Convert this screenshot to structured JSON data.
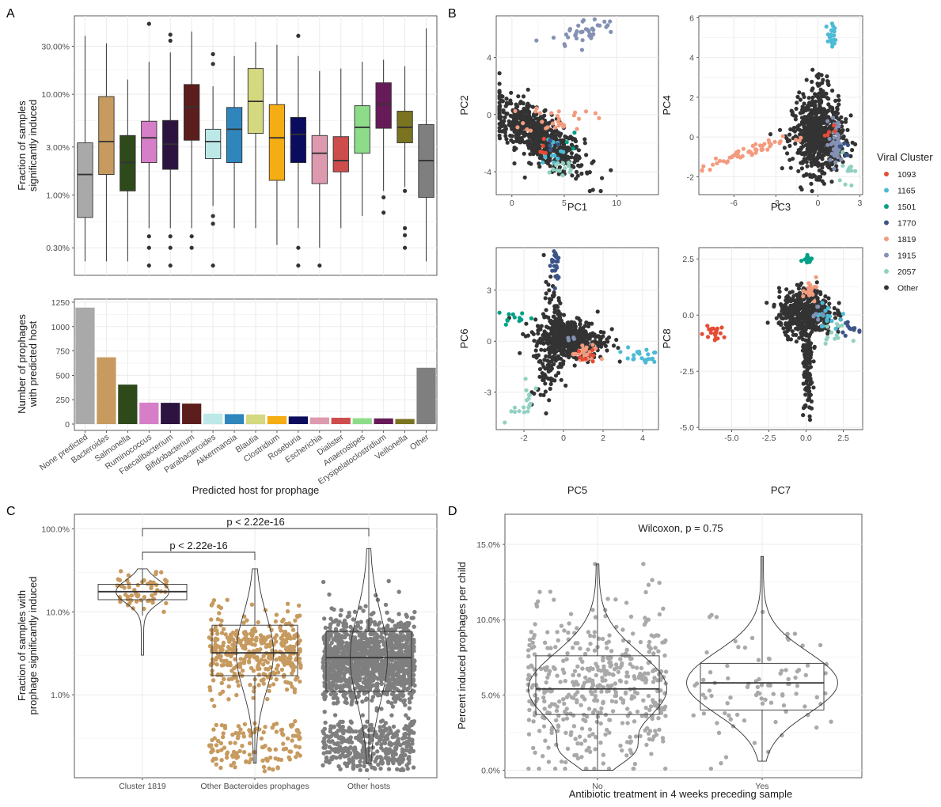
{
  "colors": {
    "panel_bg": "#ffffff",
    "grid": "#ebebeb",
    "axis_text": "#4d4d4d",
    "dark": "#333333",
    "gray_points": "#7f7f7f",
    "light_gray_points": "#a9a9a9",
    "bacteroides": "#c79a5f"
  },
  "panels": {
    "a": "A",
    "b": "B",
    "c": "C",
    "d": "D"
  },
  "chart_data": [
    {
      "id": "A-top",
      "type": "boxplot",
      "ylabel": [
        "Fraction of samples",
        "significantly induced"
      ],
      "yscale": "log",
      "ylim": [
        0.0016,
        0.6
      ],
      "yticks": [
        0.003,
        0.01,
        0.03,
        0.1,
        0.3
      ],
      "yticklabels": [
        "0.30%",
        "1.00%",
        "3.00%",
        "10.00%",
        "30.00%"
      ],
      "boxes": [
        {
          "name": "None predicted",
          "color": "#a9a9a9",
          "q1": 0.006,
          "median": 0.016,
          "q3": 0.033,
          "lo": 0.0022,
          "hi": 0.38,
          "outliers": []
        },
        {
          "name": "Bacteroides",
          "color": "#c79a5f",
          "q1": 0.016,
          "median": 0.034,
          "q3": 0.095,
          "lo": 0.0022,
          "hi": 0.32,
          "outliers": []
        },
        {
          "name": "Salmonella",
          "color": "#2f4a1a",
          "q1": 0.011,
          "median": 0.021,
          "q3": 0.039,
          "lo": 0.0022,
          "hi": 0.14,
          "outliers": []
        },
        {
          "name": "Ruminococcus",
          "color": "#d67ec8",
          "q1": 0.021,
          "median": 0.037,
          "q3": 0.054,
          "lo": 0.0047,
          "hi": 0.21,
          "outliers": [
            0.003,
            0.002,
            0.0039,
            0.5
          ]
        },
        {
          "name": "Faecalibacterium",
          "color": "#2d1440",
          "q1": 0.018,
          "median": 0.032,
          "q3": 0.055,
          "lo": 0.0047,
          "hi": 0.26,
          "outliers": [
            0.003,
            0.0039,
            0.002,
            0.34,
            0.39
          ]
        },
        {
          "name": "Bifidobacterium",
          "color": "#5c1e1c",
          "q1": 0.035,
          "median": 0.075,
          "q3": 0.125,
          "lo": 0.0047,
          "hi": 0.42,
          "outliers": [
            0.003,
            0.0039
          ]
        },
        {
          "name": "Parabacteroides",
          "color": "#bde8e8",
          "q1": 0.023,
          "median": 0.034,
          "q3": 0.045,
          "lo": 0.0078,
          "hi": 0.12,
          "outliers": [
            0.0052,
            0.0062,
            0.002,
            0.2,
            0.25
          ]
        },
        {
          "name": "Akkermansia",
          "color": "#2f86bd",
          "q1": 0.021,
          "median": 0.045,
          "q3": 0.074,
          "lo": 0.0047,
          "hi": 0.24,
          "outliers": []
        },
        {
          "name": "Blautia",
          "color": "#d4d87f",
          "q1": 0.041,
          "median": 0.085,
          "q3": 0.18,
          "lo": 0.0047,
          "hi": 0.33,
          "outliers": []
        },
        {
          "name": "Clostridium",
          "color": "#f4ad13",
          "q1": 0.014,
          "median": 0.037,
          "q3": 0.079,
          "lo": 0.0032,
          "hi": 0.31,
          "outliers": []
        },
        {
          "name": "Roseburia",
          "color": "#0c0c5e",
          "q1": 0.021,
          "median": 0.04,
          "q3": 0.059,
          "lo": 0.0047,
          "hi": 0.24,
          "outliers": [
            0.002,
            0.003,
            0.38
          ]
        },
        {
          "name": "Escherichia",
          "color": "#dd9aae",
          "q1": 0.013,
          "median": 0.026,
          "q3": 0.039,
          "lo": 0.003,
          "hi": 0.17,
          "outliers": [
            0.002
          ]
        },
        {
          "name": "Dialister",
          "color": "#cd4d4c",
          "q1": 0.017,
          "median": 0.022,
          "q3": 0.038,
          "lo": 0.0047,
          "hi": 0.18,
          "outliers": []
        },
        {
          "name": "Anaerostipes",
          "color": "#8ddc8a",
          "q1": 0.026,
          "median": 0.047,
          "q3": 0.077,
          "lo": 0.0062,
          "hi": 0.21,
          "outliers": []
        },
        {
          "name": "Erysipelatoclostridium",
          "color": "#671a58",
          "q1": 0.046,
          "median": 0.08,
          "q3": 0.13,
          "lo": 0.011,
          "hi": 0.22,
          "outliers": [
            0.0095,
            0.0067
          ]
        },
        {
          "name": "Veillonella",
          "color": "#7a731f",
          "q1": 0.033,
          "median": 0.047,
          "q3": 0.068,
          "lo": 0.012,
          "hi": 0.19,
          "outliers": [
            0.011,
            0.0047,
            0.004,
            0.003
          ]
        },
        {
          "name": "Other",
          "color": "#7f7f7f",
          "q1": 0.0095,
          "median": 0.022,
          "q3": 0.05,
          "lo": 0.0022,
          "hi": 0.45,
          "outliers": []
        }
      ]
    },
    {
      "id": "A-bottom",
      "type": "bar",
      "ylabel": [
        "Number of prophages",
        "with predicted host"
      ],
      "xlabel": "Predicted host for prophage",
      "ylim": [
        0,
        1250
      ],
      "yticks": [
        0,
        250,
        500,
        750,
        1000,
        1250
      ],
      "categories": [
        "None predicted",
        "Bacteroides",
        "Salmonella",
        "Ruminococcus",
        "Faecalibacterium",
        "Bifidobacterium",
        "Parabacteroides",
        "Akkermansia",
        "Blautia",
        "Clostridium",
        "Roseburia",
        "Escherichia",
        "Dialister",
        "Anaerostipes",
        "Erysipelatoclostridium",
        "Veillonella",
        "Other"
      ],
      "values": [
        1195,
        685,
        405,
        220,
        218,
        210,
        108,
        102,
        98,
        82,
        78,
        68,
        65,
        60,
        58,
        52,
        578
      ],
      "colors": [
        "#a9a9a9",
        "#c79a5f",
        "#2f4a1a",
        "#d67ec8",
        "#2d1440",
        "#5c1e1c",
        "#bde8e8",
        "#2f86bd",
        "#d4d87f",
        "#f4ad13",
        "#0c0c5e",
        "#dd9aae",
        "#cd4d4c",
        "#8ddc8a",
        "#671a58",
        "#7a731f",
        "#7f7f7f"
      ]
    },
    {
      "id": "B",
      "type": "scatter",
      "legend": {
        "title": "Viral Cluster",
        "position": "right",
        "entries": [
          {
            "label": "1093",
            "color": "#e64b35"
          },
          {
            "label": "1165",
            "color": "#4dbbd5"
          },
          {
            "label": "1501",
            "color": "#00a087"
          },
          {
            "label": "1770",
            "color": "#3c5488"
          },
          {
            "label": "1819",
            "color": "#f39b7f"
          },
          {
            "label": "1915",
            "color": "#8491b4"
          },
          {
            "label": "2057",
            "color": "#91d1c2"
          },
          {
            "label": "Other",
            "color": "#333333"
          }
        ]
      },
      "subplots": [
        {
          "xlabel": "PC1",
          "ylabel": "PC2",
          "xlim": [
            -1.5,
            14
          ],
          "ylim": [
            -5.6,
            6.9
          ],
          "xticks": [
            0,
            5,
            10
          ],
          "yticks": [
            -4,
            0,
            4
          ],
          "xticklabels": [
            "0",
            "5",
            "10"
          ],
          "yticklabels": [
            "-4",
            "0",
            "4"
          ],
          "clusters": [
            {
              "color": "#333333",
              "n": 650,
              "cx": 2.5,
              "cy": -1.5,
              "sx": 2.2,
              "sy": 1.3,
              "rho": -0.75
            },
            {
              "color": "#8491b4",
              "n": 40,
              "cx": 7,
              "cy": 5.8,
              "sx": 1.6,
              "sy": 0.5,
              "rho": 0.5
            },
            {
              "color": "#f39b7f",
              "n": 30,
              "cx": 4.5,
              "cy": -0.3,
              "sx": 1.6,
              "sy": 0.5,
              "rho": 0
            },
            {
              "color": "#4dbbd5",
              "n": 15,
              "cx": 3.8,
              "cy": -2.4,
              "sx": 0.6,
              "sy": 0.5,
              "rho": 0
            },
            {
              "color": "#91d1c2",
              "n": 14,
              "cx": 4.5,
              "cy": -3.8,
              "sx": 0.9,
              "sy": 0.4,
              "rho": 0
            },
            {
              "color": "#e64b35",
              "n": 6,
              "cx": 2.8,
              "cy": -2.4,
              "sx": 0.4,
              "sy": 0.3,
              "rho": 0
            },
            {
              "color": "#3c5488",
              "n": 5,
              "cx": 3.6,
              "cy": -2.2,
              "sx": 0.4,
              "sy": 0.3,
              "rho": 0
            },
            {
              "color": "#00a087",
              "n": 3,
              "cx": 5.5,
              "cy": -1.8,
              "sx": 0.3,
              "sy": 0.3,
              "rho": 0
            }
          ]
        },
        {
          "xlabel": "PC3",
          "ylabel": "PC4",
          "xlim": [
            -8.5,
            3.2
          ],
          "ylim": [
            -2.9,
            6.1
          ],
          "xticks": [
            -6,
            -3,
            0,
            3
          ],
          "yticks": [
            -2,
            0,
            2,
            4,
            6
          ],
          "xticklabels": [
            "-6",
            "-3",
            "0",
            "3"
          ],
          "yticklabels": [
            "-2",
            "0",
            "2",
            "4",
            "6"
          ],
          "clusters": [
            {
              "color": "#333333",
              "n": 650,
              "cx": 0,
              "cy": 0,
              "sx": 0.9,
              "sy": 0.9,
              "rho": 0
            },
            {
              "color": "#333333",
              "n": 90,
              "cx": 0.1,
              "cy": 1.6,
              "sx": 0.3,
              "sy": 1.0,
              "rho": 0
            },
            {
              "color": "#f39b7f",
              "n": 55,
              "cx": -5.5,
              "cy": -0.9,
              "sx": 1.5,
              "sy": 0.35,
              "rho": 0.9
            },
            {
              "color": "#4dbbd5",
              "n": 20,
              "cx": 1.0,
              "cy": 5.0,
              "sx": 0.15,
              "sy": 0.35,
              "rho": 0
            },
            {
              "color": "#8491b4",
              "n": 45,
              "cx": 1.3,
              "cy": -0.3,
              "sx": 0.25,
              "sy": 0.6,
              "rho": 0
            },
            {
              "color": "#91d1c2",
              "n": 12,
              "cx": 2.0,
              "cy": -1.5,
              "sx": 0.3,
              "sy": 0.5,
              "rho": 0
            },
            {
              "color": "#e64b35",
              "n": 5,
              "cx": 1.0,
              "cy": 0.3,
              "sx": 0.15,
              "sy": 0.15,
              "rho": 0
            },
            {
              "color": "#3c5488",
              "n": 6,
              "cx": 1.9,
              "cy": -0.7,
              "sx": 0.2,
              "sy": 0.3,
              "rho": 0
            }
          ]
        },
        {
          "xlabel": "PC5",
          "ylabel": "PC6",
          "xlim": [
            -3.4,
            4.8
          ],
          "ylim": [
            -5.2,
            5.5
          ],
          "xticks": [
            -2,
            0,
            2,
            4
          ],
          "yticks": [
            -3,
            0,
            3
          ],
          "xticklabels": [
            "-2",
            "0",
            "2",
            "4"
          ],
          "yticklabels": [
            "-3",
            "0",
            "3"
          ],
          "clusters": [
            {
              "color": "#333333",
              "n": 450,
              "cx": 0.3,
              "cy": 0.1,
              "sx": 0.9,
              "sy": 0.6,
              "rho": 0
            },
            {
              "color": "#333333",
              "n": 70,
              "cx": -0.5,
              "cy": 1.5,
              "sx": 0.25,
              "sy": 1.0,
              "rho": 0
            },
            {
              "color": "#333333",
              "n": 60,
              "cx": -0.8,
              "cy": -2.0,
              "sx": 0.4,
              "sy": 0.9,
              "rho": 0.6
            },
            {
              "color": "#3c5488",
              "n": 25,
              "cx": -0.4,
              "cy": 4.5,
              "sx": 0.12,
              "sy": 0.6,
              "rho": 0
            },
            {
              "color": "#00a087",
              "n": 12,
              "cx": -2.5,
              "cy": 1.4,
              "sx": 0.5,
              "sy": 0.2,
              "rho": 0
            },
            {
              "color": "#91d1c2",
              "n": 18,
              "cx": -2.1,
              "cy": -3.9,
              "sx": 0.5,
              "sy": 0.6,
              "rho": 0.7
            },
            {
              "color": "#4dbbd5",
              "n": 22,
              "cx": 3.8,
              "cy": -0.8,
              "sx": 0.5,
              "sy": 0.25,
              "rho": 0
            },
            {
              "color": "#f39b7f",
              "n": 25,
              "cx": 1.1,
              "cy": -0.8,
              "sx": 0.35,
              "sy": 0.3,
              "rho": 0
            },
            {
              "color": "#e64b35",
              "n": 8,
              "cx": 1.3,
              "cy": -1.0,
              "sx": 0.25,
              "sy": 0.2,
              "rho": 0
            },
            {
              "color": "#8491b4",
              "n": 4,
              "cx": 0.3,
              "cy": 0.2,
              "sx": 0.2,
              "sy": 0.2,
              "rho": 0
            }
          ]
        },
        {
          "xlabel": "PC7",
          "ylabel": "PC8",
          "xlim": [
            -7.2,
            3.8
          ],
          "ylim": [
            -5.1,
            3.0
          ],
          "xticks": [
            -5,
            -2.5,
            0,
            2.5
          ],
          "yticks": [
            -5,
            -2.5,
            0,
            2.5
          ],
          "xticklabels": [
            "-5.0",
            "-2.5",
            "0.0",
            "2.5"
          ],
          "yticklabels": [
            "-5.0",
            "-2.5",
            "0.0",
            "2.5"
          ],
          "clusters": [
            {
              "color": "#333333",
              "n": 500,
              "cx": 0,
              "cy": 0.1,
              "sx": 0.9,
              "sy": 0.5,
              "rho": 0
            },
            {
              "color": "#333333",
              "n": 120,
              "cx": 0.1,
              "cy": -2.5,
              "sx": 0.18,
              "sy": 1.1,
              "rho": 0
            },
            {
              "color": "#e64b35",
              "n": 20,
              "cx": -6.2,
              "cy": -0.8,
              "sx": 0.4,
              "sy": 0.15,
              "rho": 0
            },
            {
              "color": "#00a087",
              "n": 15,
              "cx": 0.1,
              "cy": 2.55,
              "sx": 0.15,
              "sy": 0.12,
              "rho": 0
            },
            {
              "color": "#f39b7f",
              "n": 20,
              "cx": 0.3,
              "cy": 1.3,
              "sx": 0.35,
              "sy": 0.3,
              "rho": 0
            },
            {
              "color": "#4dbbd5",
              "n": 18,
              "cx": 1.3,
              "cy": -0.1,
              "sx": 0.4,
              "sy": 0.25,
              "rho": 0
            },
            {
              "color": "#3c5488",
              "n": 12,
              "cx": 2.8,
              "cy": -0.6,
              "sx": 0.4,
              "sy": 0.15,
              "rho": 0
            },
            {
              "color": "#91d1c2",
              "n": 12,
              "cx": 1.9,
              "cy": -0.8,
              "sx": 0.4,
              "sy": 0.2,
              "rho": 0
            },
            {
              "color": "#8491b4",
              "n": 6,
              "cx": 0.8,
              "cy": 0.0,
              "sx": 0.3,
              "sy": 0.2,
              "rho": 0
            }
          ]
        }
      ]
    },
    {
      "id": "C",
      "type": "violin+box+jitter",
      "ylabel": [
        "Fraction of samples with",
        "prophage significantly induced"
      ],
      "yscale": "log",
      "ylim": [
        0.001,
        1.5
      ],
      "yticks": [
        0.01,
        0.1,
        1.0
      ],
      "yticklabels": [
        "1.0%",
        "10.0%",
        "100.0%"
      ],
      "annotations": [
        "p < 2.22e-16",
        "p < 2.22e-16"
      ],
      "groups": [
        {
          "name": "Cluster 1819",
          "color": "#c79a5f",
          "q1": 0.14,
          "median": 0.175,
          "q3": 0.215,
          "lo": 0.09,
          "hi": 0.33,
          "min": 0.03,
          "max": 0.33,
          "n": 60,
          "mu": 0.17,
          "sd": 0.22
        },
        {
          "name": "Other Bacteroides prophages",
          "color": "#c79a5f",
          "q1": 0.017,
          "median": 0.032,
          "q3": 0.069,
          "lo": 0.0015,
          "hi": 0.33,
          "min": 0.0015,
          "max": 0.33,
          "n": 520,
          "mu": 0.033,
          "sd": 0.45
        },
        {
          "name": "Other hosts",
          "color": "#7f7f7f",
          "q1": 0.011,
          "median": 0.028,
          "q3": 0.058,
          "lo": 0.0015,
          "hi": 0.58,
          "min": 0.0015,
          "max": 0.58,
          "n": 1700,
          "mu": 0.026,
          "sd": 0.5
        }
      ]
    },
    {
      "id": "D",
      "type": "violin+box+jitter",
      "title": "Wilcoxon, p = 0.75",
      "ylabel": "Percent induced prophages per child",
      "xlabel": "Antibiotic treatment in 4 weeks preceding sample",
      "ylim": [
        -0.005,
        0.17
      ],
      "yticks": [
        0,
        0.05,
        0.1,
        0.15
      ],
      "yticklabels": [
        "0.0%",
        "5.0%",
        "10.0%",
        "15.0%"
      ],
      "groups": [
        {
          "name": "No",
          "color": "#a9a9a9",
          "q1": 0.037,
          "median": 0.054,
          "q3": 0.076,
          "lo": 0.0,
          "hi": 0.137,
          "min": 0.0,
          "max": 0.137,
          "n": 470,
          "mu": 0.055,
          "sd": 0.028
        },
        {
          "name": "Yes",
          "color": "#a9a9a9",
          "q1": 0.04,
          "median": 0.058,
          "q3": 0.071,
          "lo": 0.006,
          "hi": 0.142,
          "min": 0.006,
          "max": 0.142,
          "n": 90,
          "mu": 0.055,
          "sd": 0.024
        }
      ]
    }
  ]
}
